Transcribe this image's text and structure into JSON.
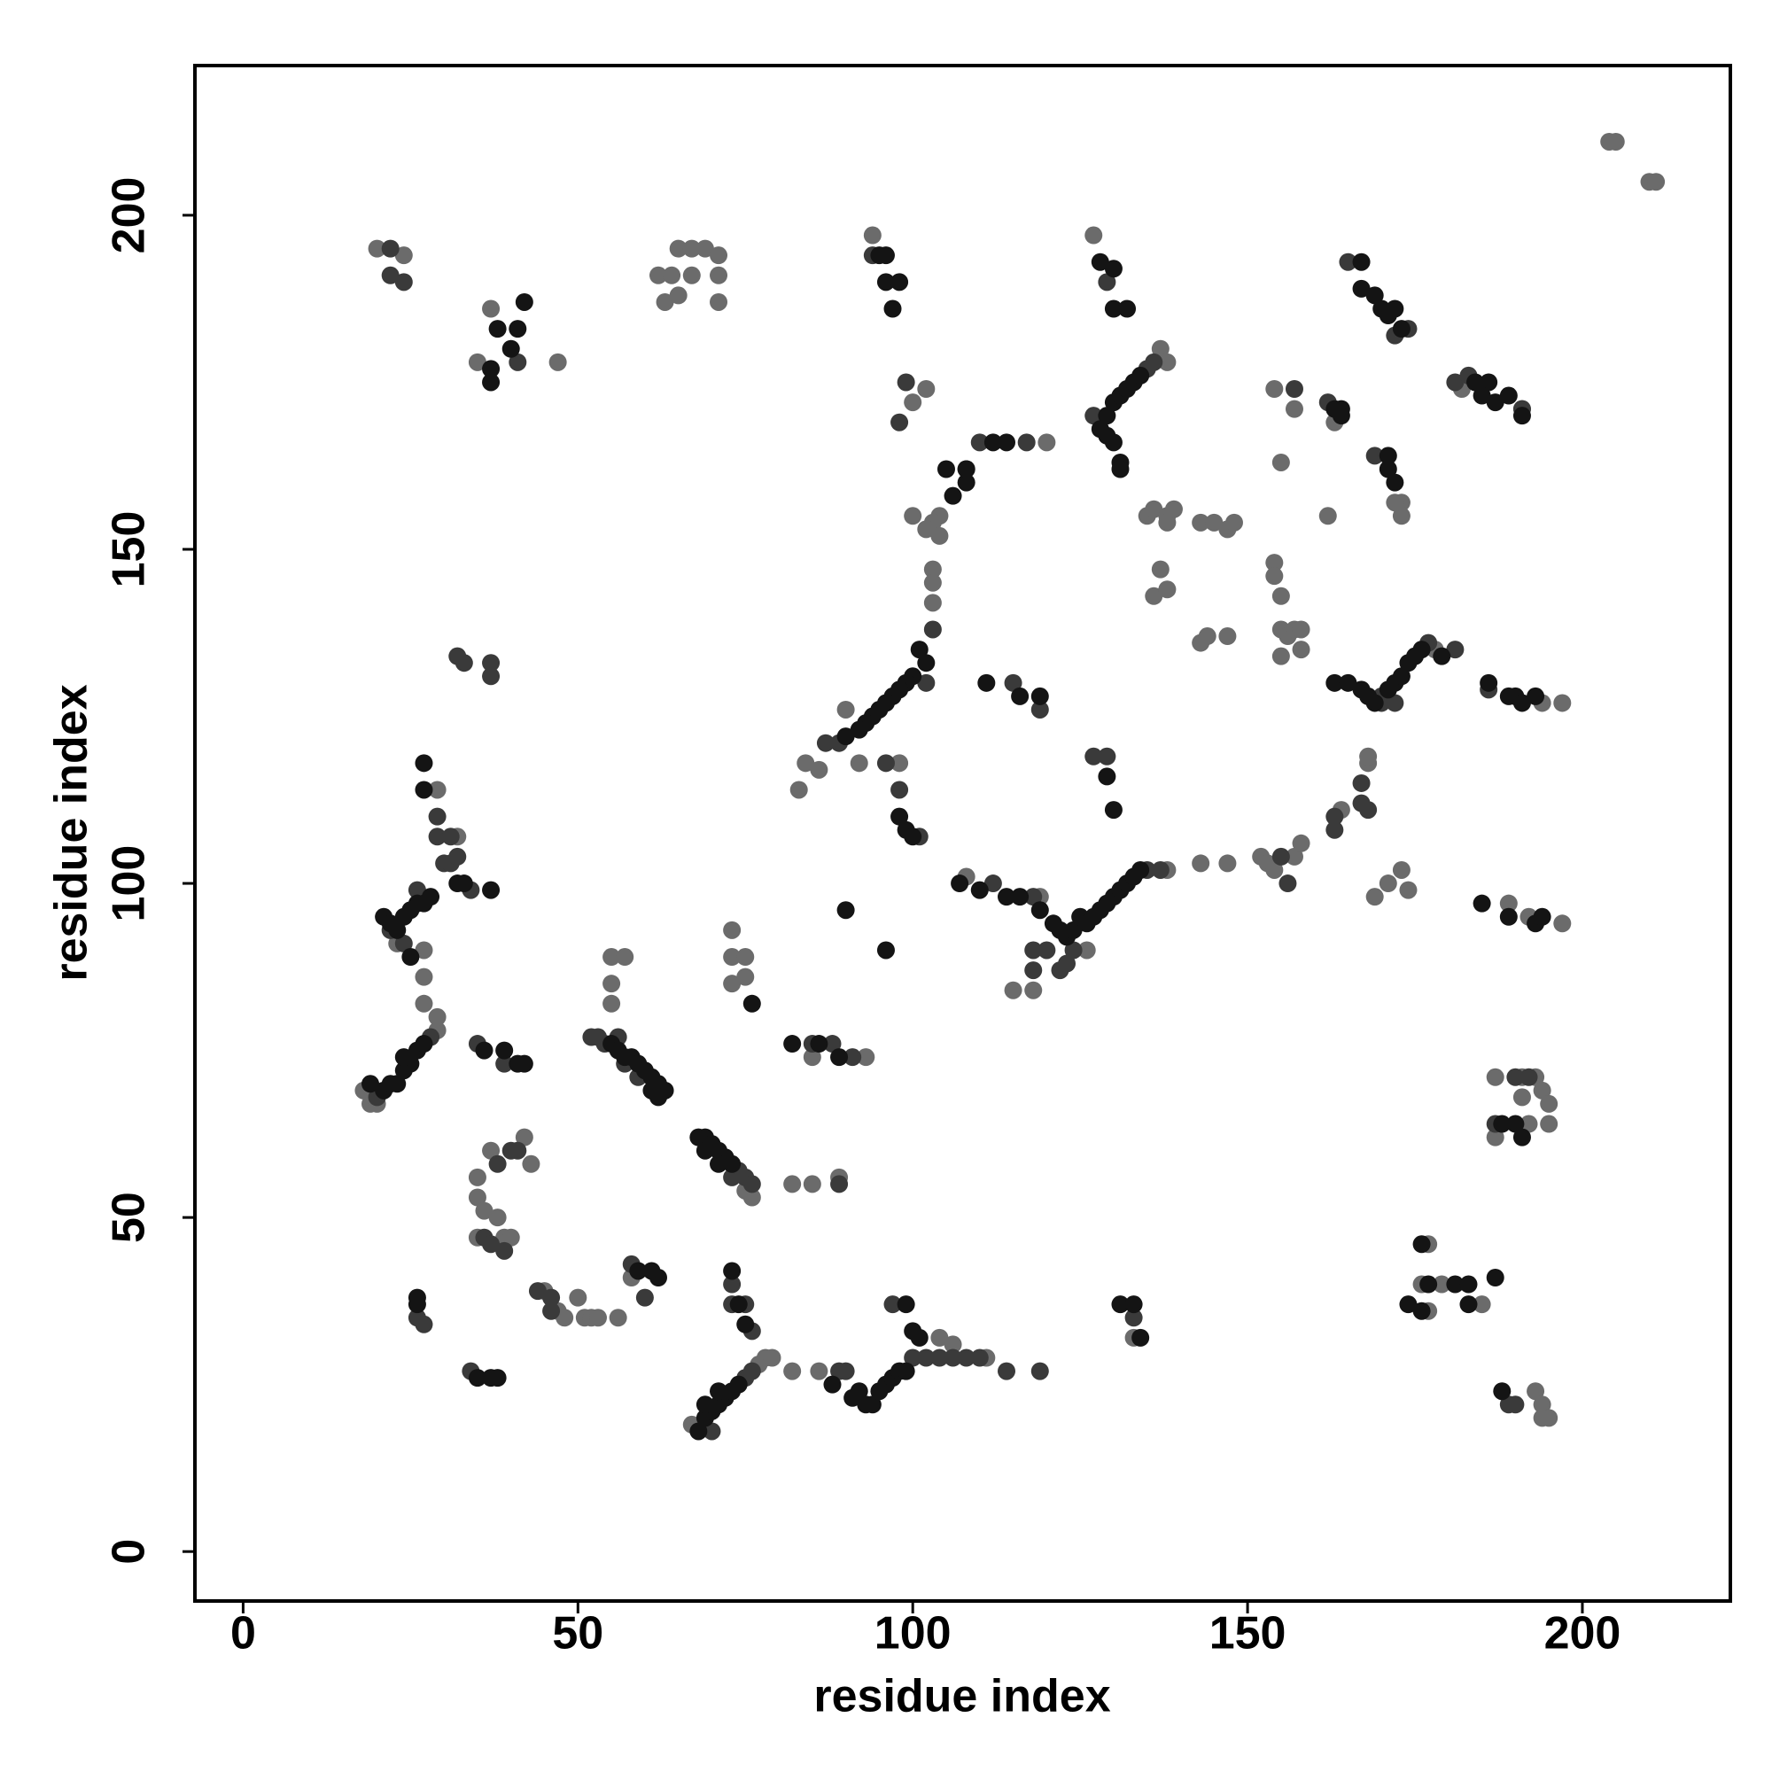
{
  "chart_data": {
    "type": "scatter",
    "xlabel": "residue index",
    "ylabel": "residue index",
    "xlim": [
      -7.2,
      222.1
    ],
    "ylim": [
      -7.4,
      222.4
    ],
    "xticks": [
      0,
      50,
      100,
      150,
      200
    ],
    "yticks": [
      0,
      50,
      100,
      150,
      200
    ],
    "series": [
      {
        "color": "#6b6b6b",
        "x": [
          20,
          24,
          62,
          63,
          65,
          65,
          67,
          67,
          69,
          71,
          71,
          71,
          64,
          94,
          127,
          100,
          102,
          137,
          138,
          204,
          205,
          210,
          211,
          35,
          37,
          47,
          173,
          173,
          172,
          155,
          162,
          154,
          157,
          163,
          182,
          191,
          104,
          103,
          102,
          100,
          104,
          103,
          103,
          103,
          86,
          84,
          83,
          90,
          92,
          120,
          98,
          135,
          136,
          138,
          138,
          137,
          136,
          138,
          139,
          143,
          145,
          147,
          148,
          143,
          144,
          147,
          154,
          154,
          155,
          155,
          156,
          157,
          158,
          158,
          155,
          178,
          194,
          197,
          164,
          168,
          168,
          152,
          153,
          154,
          157,
          158,
          143,
          147,
          138,
          108,
          115,
          118,
          126,
          119,
          169,
          171,
          173,
          174,
          189,
          192,
          197,
          187,
          191,
          193,
          191,
          194,
          195,
          192,
          195,
          187,
          176,
          179,
          177,
          177,
          185,
          193,
          194,
          195,
          194,
          18,
          19,
          20,
          29,
          29,
          27,
          27,
          27,
          29,
          32,
          23,
          37,
          42,
          43,
          35,
          35,
          36,
          35,
          38,
          39,
          40,
          45,
          47,
          48,
          50,
          51,
          52,
          53,
          56,
          55,
          57,
          55,
          55,
          73,
          73,
          75,
          73,
          75,
          76,
          75,
          67,
          77,
          78,
          79,
          82,
          85,
          89,
          93,
          85,
          82,
          86,
          58,
          104,
          106,
          111,
          133
        ],
        "values": [
          195,
          194,
          191,
          187,
          195,
          188,
          191,
          195,
          195,
          194,
          191,
          187,
          191,
          197,
          197,
          172,
          174,
          180,
          178,
          211,
          211,
          205,
          205,
          178,
          186,
          178,
          157,
          155,
          157,
          163,
          155,
          174,
          171,
          169,
          174,
          171,
          155,
          154,
          153,
          155,
          152,
          147,
          145,
          142,
          117,
          118,
          114,
          126,
          118,
          166,
          118,
          155,
          156,
          155,
          154,
          147,
          143,
          144,
          156,
          154,
          154,
          153,
          154,
          136,
          137,
          137,
          148,
          146,
          143,
          138,
          137,
          138,
          138,
          135,
          134,
          135,
          127,
          127,
          111,
          118,
          119,
          104,
          103,
          102,
          104,
          106,
          103,
          103,
          102,
          101,
          84,
          84,
          90,
          98,
          98,
          100,
          102,
          99,
          97,
          95,
          94,
          71,
          71,
          71,
          68,
          69,
          67,
          64,
          64,
          62,
          40,
          40,
          46,
          36,
          37,
          24,
          22,
          20,
          20,
          69,
          67,
          67,
          78,
          80,
          90,
          86,
          82,
          114,
          107,
          91,
          60,
          62,
          58,
          56,
          53,
          51,
          47,
          50,
          47,
          47,
          39,
          36,
          35,
          38,
          35,
          35,
          35,
          35,
          89,
          89,
          85,
          82,
          93,
          89,
          89,
          85,
          86,
          53,
          54,
          19,
          28,
          29,
          29,
          55,
          55,
          56,
          74,
          74,
          27,
          27,
          41,
          32,
          31,
          29,
          32
        ]
      },
      {
        "color": "#3a3a3a",
        "x": [
          22,
          24,
          22,
          127,
          135,
          136,
          129,
          94,
          163,
          163,
          167,
          103,
          102,
          89,
          87,
          96,
          98,
          101,
          110,
          117,
          135,
          137,
          118,
          120,
          122,
          123,
          124,
          118,
          112,
          118,
          170,
          172,
          170,
          177,
          181,
          186,
          190,
          192,
          187,
          190,
          189,
          20,
          28,
          22,
          26,
          24,
          29,
          29,
          30,
          31,
          32,
          31,
          34,
          35,
          39,
          32,
          33,
          37,
          37,
          52,
          53,
          54,
          56,
          57,
          59,
          74,
          75,
          76,
          73,
          70,
          75,
          76,
          89,
          90,
          97,
          100,
          102,
          104,
          106,
          108,
          110,
          114,
          119,
          38,
          40,
          41,
          36,
          37,
          39,
          44,
          46,
          46,
          26,
          27,
          34,
          58,
          60,
          73,
          73,
          75,
          76,
          85,
          88,
          91,
          89,
          165,
          172,
          174,
          181,
          183,
          191,
          162,
          169,
          157,
          99,
          98,
          41,
          133,
          127,
          129,
          115,
          119,
          155,
          156,
          168,
          167
        ],
        "values": [
          191,
          190,
          195,
          170,
          177,
          178,
          190,
          194,
          110,
          108,
          115,
          138,
          130,
          121,
          121,
          118,
          114,
          107,
          166,
          166,
          102,
          102,
          90,
          90,
          87,
          88,
          90,
          87,
          100,
          98,
          128,
          127,
          127,
          136,
          135,
          129,
          71,
          71,
          64,
          22,
          22,
          68,
          77,
          93,
          99,
          91,
          110,
          107,
          103,
          103,
          104,
          107,
          99,
          76,
          73,
          134,
          133,
          133,
          131,
          77,
          77,
          76,
          77,
          73,
          71,
          57,
          56,
          55,
          56,
          18,
          26,
          27,
          27,
          27,
          37,
          29,
          29,
          29,
          29,
          29,
          29,
          27,
          27,
          58,
          60,
          60,
          47,
          46,
          45,
          39,
          36,
          38,
          35,
          34,
          27,
          43,
          38,
          40,
          37,
          37,
          33,
          76,
          76,
          74,
          55,
          193,
          182,
          183,
          175,
          176,
          171,
          172,
          164,
          174,
          175,
          169,
          178,
          35,
          119,
          119,
          130,
          126,
          104,
          100,
          111,
          112
        ]
      },
      {
        "color": "#141414",
        "x": [
          128,
          129,
          130,
          131,
          132,
          133,
          134,
          130,
          129,
          131,
          131,
          128,
          130,
          130,
          132,
          95,
          96,
          96,
          98,
          97,
          101,
          102,
          100,
          99,
          98,
          97,
          96,
          95,
          94,
          93,
          92,
          90,
          108,
          106,
          114,
          112,
          121,
          122,
          123,
          124,
          125,
          126,
          127,
          128,
          129,
          130,
          131,
          132,
          133,
          134,
          110,
          114,
          116,
          119,
          107,
          163,
          165,
          167,
          168,
          169,
          171,
          172,
          173,
          174,
          175,
          176,
          179,
          21,
          22,
          23,
          24,
          25,
          26,
          27,
          28,
          25,
          27,
          27,
          32,
          33,
          37,
          19,
          21,
          22,
          23,
          24,
          25,
          26,
          27,
          24,
          36,
          39,
          41,
          42,
          55,
          56,
          57,
          58,
          59,
          60,
          61,
          62,
          63,
          61,
          62,
          68,
          69,
          70,
          71,
          72,
          73,
          69,
          71,
          68,
          69,
          70,
          71,
          72,
          73,
          74,
          69,
          71,
          91,
          92,
          93,
          94,
          95,
          96,
          97,
          98,
          99,
          99,
          100,
          101,
          88,
          37,
          38,
          40,
          41,
          42,
          37,
          167,
          169,
          170,
          171,
          172,
          173,
          167,
          184,
          186,
          185,
          187,
          189,
          191,
          171,
          171,
          172,
          163,
          164,
          164,
          26,
          26,
          37,
          38,
          35,
          74,
          73,
          75,
          131,
          133,
          134,
          186,
          189,
          190,
          191,
          193,
          185,
          189,
          193,
          194,
          176,
          177,
          174,
          176,
          181,
          183,
          187,
          183,
          188,
          190,
          188,
          191,
          61,
          62,
          59,
          82,
          86,
          89,
          76,
          90,
          96,
          111,
          116,
          119,
          129,
          130,
          98,
          99,
          100,
          108,
          105,
          108
        ],
        "values": [
          168,
          170,
          172,
          173,
          174,
          175,
          176,
          166,
          167,
          163,
          162,
          193,
          192,
          186,
          186,
          194,
          194,
          190,
          190,
          186,
          135,
          133,
          131,
          130,
          129,
          128,
          127,
          126,
          125,
          124,
          123,
          122,
          162,
          158,
          166,
          166,
          94,
          93,
          92,
          93,
          95,
          94,
          95,
          96,
          97,
          98,
          99,
          100,
          101,
          102,
          99,
          98,
          98,
          96,
          100,
          130,
          130,
          129,
          128,
          127,
          129,
          130,
          131,
          133,
          134,
          135,
          134,
          95,
          94,
          93,
          95,
          96,
          97,
          97,
          98,
          89,
          114,
          118,
          100,
          100,
          99,
          70,
          69,
          70,
          70,
          72,
          73,
          75,
          76,
          74,
          75,
          75,
          73,
          73,
          76,
          75,
          74,
          74,
          73,
          72,
          71,
          70,
          69,
          69,
          68,
          62,
          62,
          61,
          60,
          59,
          58,
          60,
          58,
          18,
          20,
          21,
          22,
          23,
          24,
          25,
          22,
          24,
          23,
          24,
          22,
          22,
          24,
          25,
          26,
          27,
          27,
          37,
          33,
          32,
          25,
          177,
          183,
          180,
          183,
          187,
          175,
          189,
          188,
          186,
          185,
          186,
          183,
          193,
          175,
          175,
          173,
          172,
          173,
          170,
          164,
          162,
          160,
          171,
          171,
          170,
          38,
          37,
          26,
          26,
          26,
          37,
          42,
          34,
          37,
          37,
          32,
          130,
          128,
          128,
          127,
          128,
          97,
          95,
          94,
          95,
          46,
          40,
          37,
          36,
          40,
          37,
          41,
          40,
          24,
          64,
          64,
          62,
          42,
          41,
          42,
          76,
          76,
          74,
          82,
          96,
          90,
          130,
          128,
          128,
          116,
          111,
          110,
          108,
          107,
          160,
          162,
          162
        ]
      }
    ]
  }
}
